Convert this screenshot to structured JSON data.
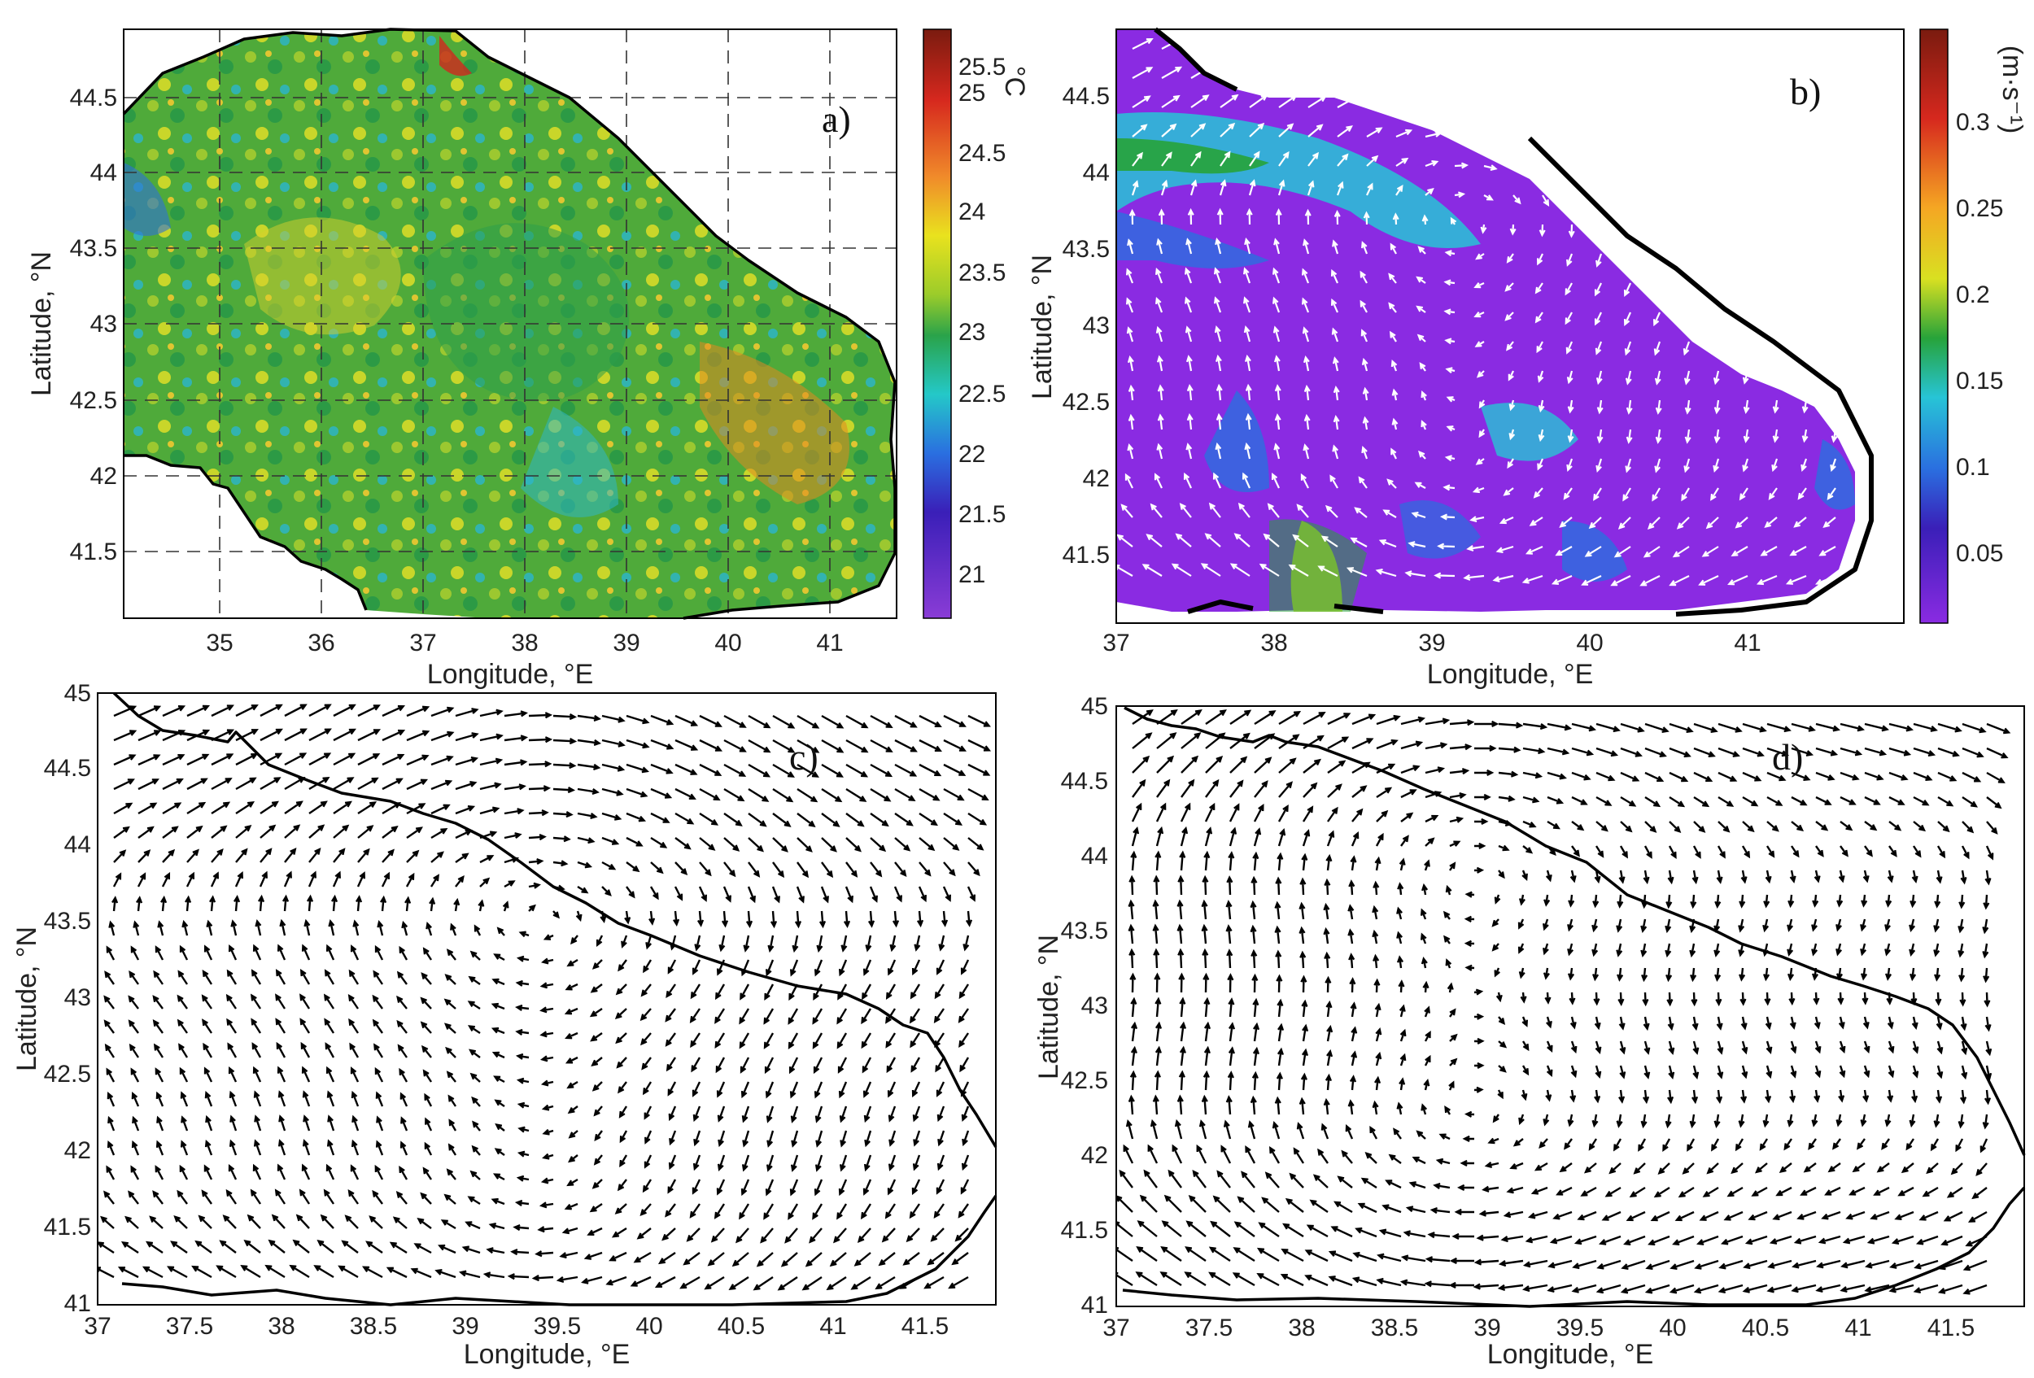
{
  "panels": {
    "a": {
      "label": "a)",
      "xlabel": "Longitude, °E",
      "ylabel": "Latitude, °N",
      "xticks": [
        "35",
        "36",
        "37",
        "38",
        "39",
        "40",
        "41"
      ],
      "yticks": [
        "41.5",
        "42",
        "42.5",
        "43",
        "43.5",
        "44",
        "44.5"
      ],
      "colorbar_unit": "°C",
      "colorbar_ticks": [
        "25.5",
        "25",
        "24.5",
        "24",
        "23.5",
        "23",
        "22.5",
        "22",
        "21.5",
        "21"
      ]
    },
    "b": {
      "label": "b)",
      "xlabel": "Longitude, °E",
      "ylabel": "Latitude, °N",
      "xticks": [
        "37",
        "38",
        "39",
        "40",
        "41"
      ],
      "yticks": [
        "41.5",
        "42",
        "42.5",
        "43",
        "43.5",
        "44",
        "44.5"
      ],
      "colorbar_unit": "(m·s⁻¹)",
      "colorbar_ticks": [
        "0.3",
        "0.25",
        "0.2",
        "0.15",
        "0.1",
        "0.05"
      ]
    },
    "c": {
      "label": "c)",
      "xlabel": "Longitude, °E",
      "ylabel": "Latitude, °N",
      "xticks": [
        "37",
        "37.5",
        "38",
        "38.5",
        "39",
        "39.5",
        "40",
        "40.5",
        "41",
        "41.5"
      ],
      "yticks": [
        "41",
        "41.5",
        "42",
        "42.5",
        "43",
        "43.5",
        "44",
        "44.5",
        "45"
      ]
    },
    "d": {
      "label": "d)",
      "xlabel": "Longitude, °E",
      "ylabel": "Latitude, °N",
      "xticks": [
        "37",
        "37.5",
        "38",
        "38.5",
        "39",
        "39.5",
        "40",
        "40.5",
        "41",
        "41.5"
      ],
      "yticks": [
        "41",
        "41.5",
        "42",
        "42.5",
        "43",
        "43.5",
        "44",
        "44.5",
        "45"
      ]
    }
  },
  "colors": {
    "sst_scale": [
      "#7a1b0f",
      "#d6281e",
      "#f08a2a",
      "#e9e21e",
      "#9ccc2a",
      "#2aa34a",
      "#24c8c8",
      "#2a6fe0",
      "#3a1fb8",
      "#8a3cd6"
    ],
    "speed_scale": [
      "#7a1b0f",
      "#d6281e",
      "#f5a623",
      "#d9e021",
      "#27a33a",
      "#27c4d6",
      "#2a6fe0",
      "#3a1fb8",
      "#8a2be2"
    ],
    "vector_color_b": "#ffffff",
    "vector_color_cd": "#000000"
  }
}
